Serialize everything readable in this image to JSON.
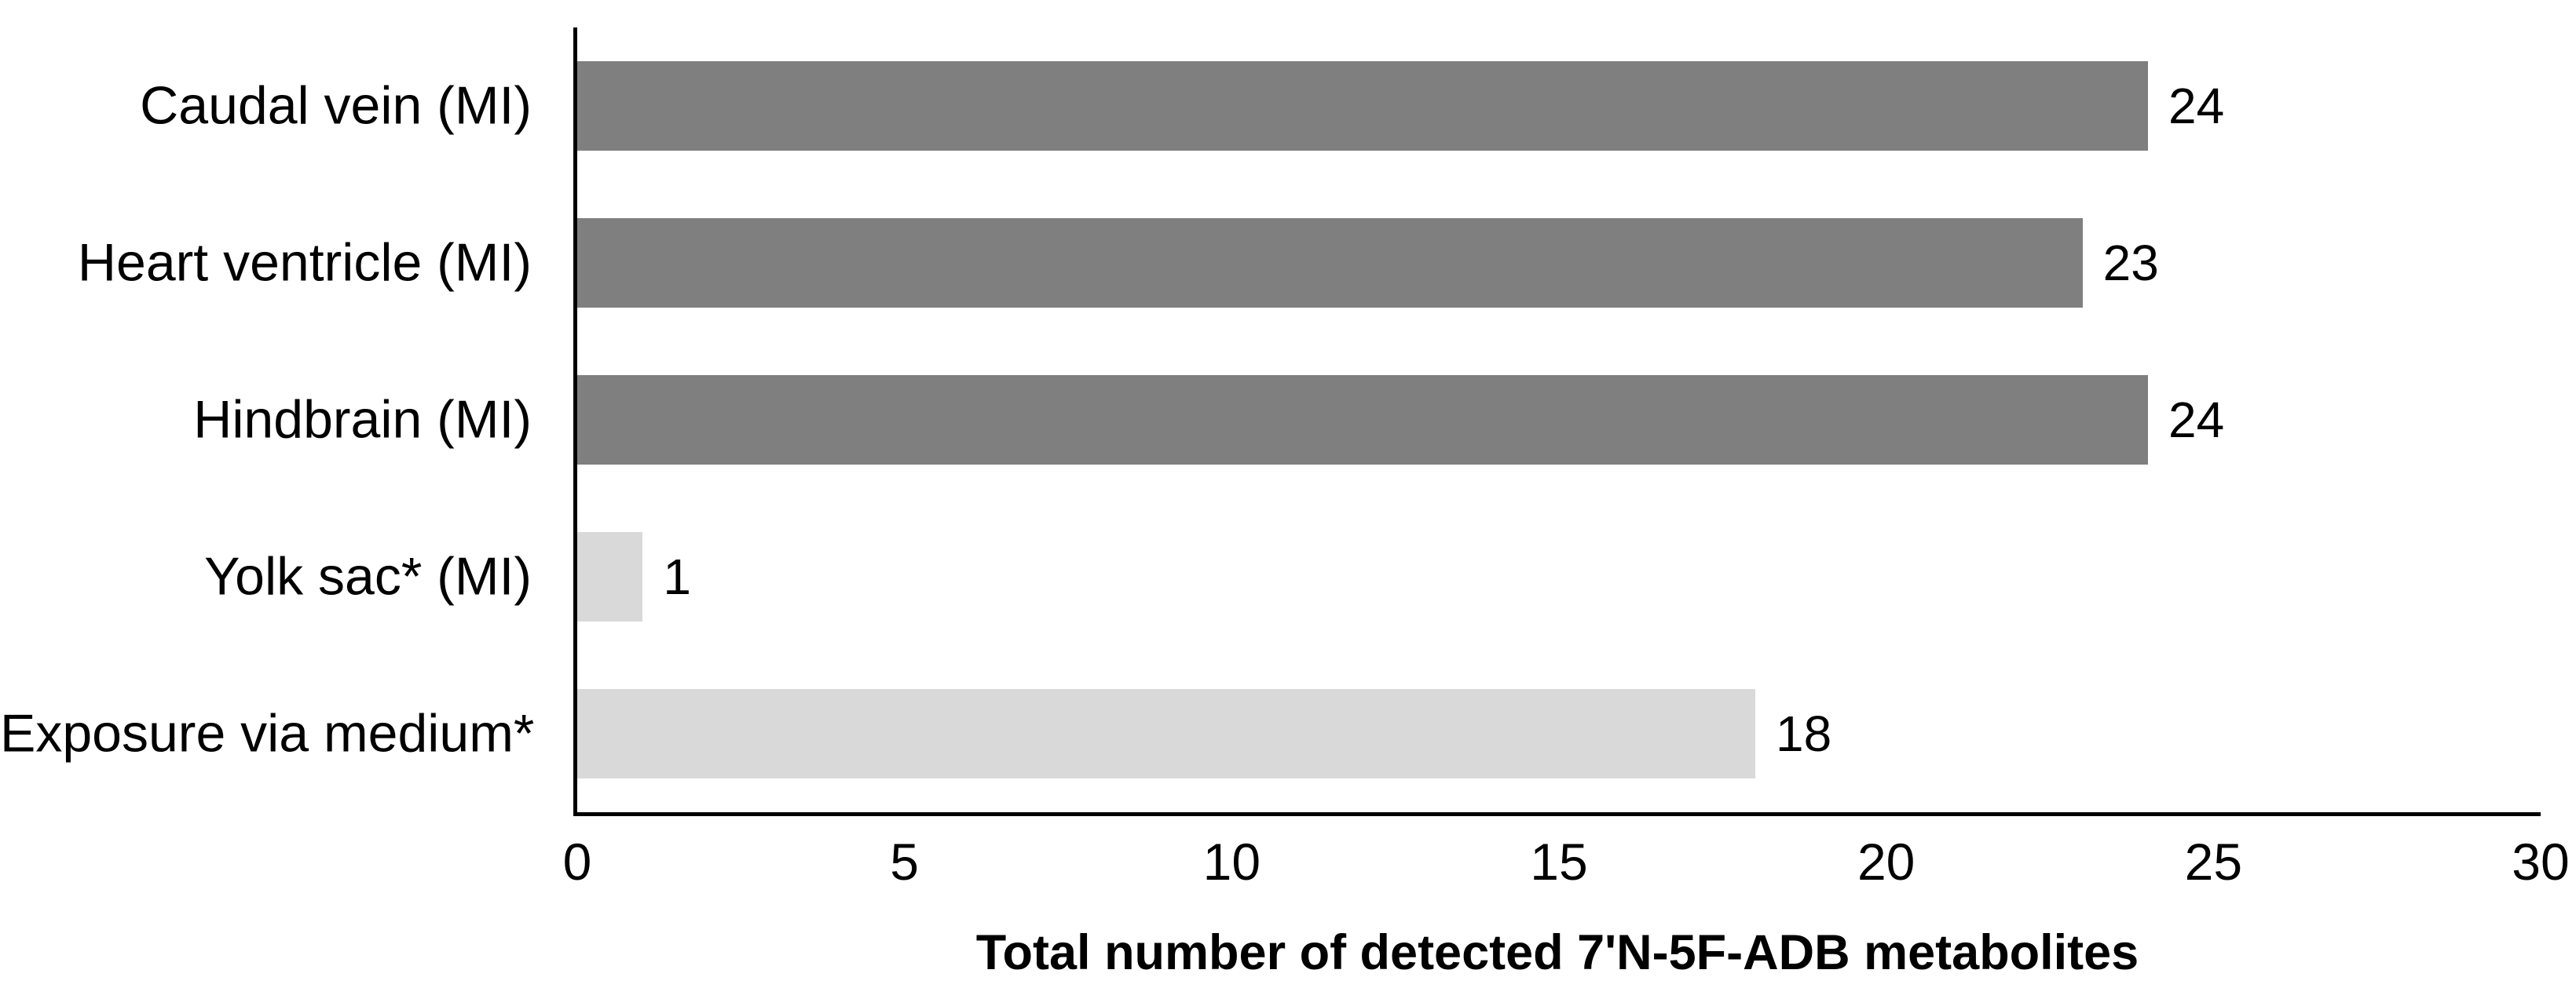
{
  "chart_data": {
    "type": "bar",
    "orientation": "horizontal",
    "categories": [
      "Caudal vein (MI)",
      "Heart ventricle (MI)",
      "Hindbrain (MI)",
      "Yolk sac* (MI)",
      "Exposure via medium*"
    ],
    "values": [
      24,
      23,
      24,
      1,
      18
    ],
    "value_labels": [
      "24",
      "23",
      "24",
      "1",
      "18"
    ],
    "bar_colors": [
      "#7f7f7f",
      "#7f7f7f",
      "#7f7f7f",
      "#d9d9d9",
      "#d9d9d9"
    ],
    "title": "",
    "xlabel": "Total number of detected 7'N-5F-ADB metabolites",
    "ylabel": "",
    "xlim": [
      0,
      30
    ],
    "xticks": [
      0,
      5,
      10,
      15,
      20,
      25,
      30
    ],
    "grid": false,
    "legend": false,
    "axis_color": "#000000",
    "text_color": "#000000",
    "background_color": "#ffffff"
  }
}
